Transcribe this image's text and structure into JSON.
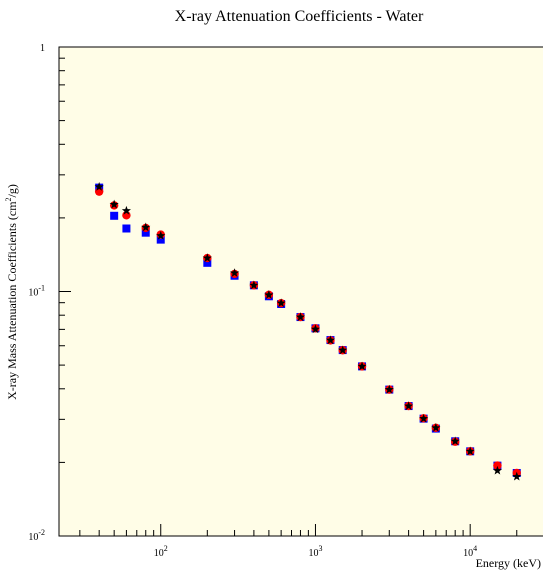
{
  "chart_data": {
    "type": "scatter",
    "title": "X-ray Attenuation Coefficients - Water",
    "xlabel": "Energy (keV)",
    "ylabel_main": "X-ray Mass Attenuation Coefficients (cm",
    "ylabel_sup": "2",
    "ylabel_tail": "/g)",
    "x_scale": "log",
    "y_scale": "log",
    "xlim": [
      22,
      30000
    ],
    "ylim": [
      0.01,
      1
    ],
    "x_tick_labels": [
      {
        "value": 100,
        "base": "10",
        "exp": "2"
      },
      {
        "value": 1000,
        "base": "10",
        "exp": "3"
      },
      {
        "value": 10000,
        "base": "10",
        "exp": "4"
      }
    ],
    "y_tick_labels": [
      {
        "value": 0.01,
        "base": "10",
        "exp": "-2"
      },
      {
        "value": 0.1,
        "base": "10",
        "exp": "-1"
      },
      {
        "value": 1,
        "base": "1",
        "exp": ""
      }
    ],
    "background_color": "#fffde7",
    "series": [
      {
        "marker": "square",
        "color": "#0000ff",
        "x": [
          40,
          50,
          60,
          80,
          100,
          200,
          300,
          400,
          500,
          600,
          800,
          1000,
          1250,
          1500,
          2000,
          3000,
          4000,
          5000,
          6000,
          8000,
          10000,
          15000,
          20000
        ],
        "y": [
          0.266,
          0.204,
          0.181,
          0.174,
          0.163,
          0.131,
          0.116,
          0.106,
          0.0956,
          0.0889,
          0.0786,
          0.0707,
          0.0633,
          0.0576,
          0.0494,
          0.0397,
          0.034,
          0.0302,
          0.0275,
          0.0244,
          0.0222,
          0.0194,
          0.0181
        ]
      },
      {
        "marker": "circle",
        "color": "#ff0000",
        "x": [
          40,
          50,
          60,
          80,
          100,
          200,
          300,
          400,
          500,
          600,
          800,
          1000,
          1250,
          1500,
          2000,
          3000,
          4000,
          5000,
          6000,
          8000,
          10000,
          15000,
          20000
        ],
        "y": [
          0.256,
          0.225,
          0.205,
          0.182,
          0.171,
          0.137,
          0.118,
          0.106,
          0.0969,
          0.0896,
          0.0786,
          0.0707,
          0.0631,
          0.0575,
          0.0494,
          0.0397,
          0.034,
          0.0303,
          0.0277,
          0.0243,
          0.0222,
          0.0194,
          0.0181
        ]
      },
      {
        "marker": "star",
        "color": "#000000",
        "x": [
          40,
          50,
          60,
          80,
          100,
          200,
          300,
          400,
          500,
          600,
          800,
          1000,
          1250,
          1500,
          2000,
          3000,
          4000,
          5000,
          6000,
          8000,
          10000,
          15000,
          20000
        ],
        "y": [
          0.268,
          0.227,
          0.214,
          0.183,
          0.169,
          0.137,
          0.119,
          0.106,
          0.0968,
          0.0896,
          0.0786,
          0.0701,
          0.0632,
          0.0575,
          0.0494,
          0.0397,
          0.034,
          0.0302,
          0.0277,
          0.0244,
          0.0222,
          0.0185,
          0.0175
        ]
      }
    ]
  }
}
